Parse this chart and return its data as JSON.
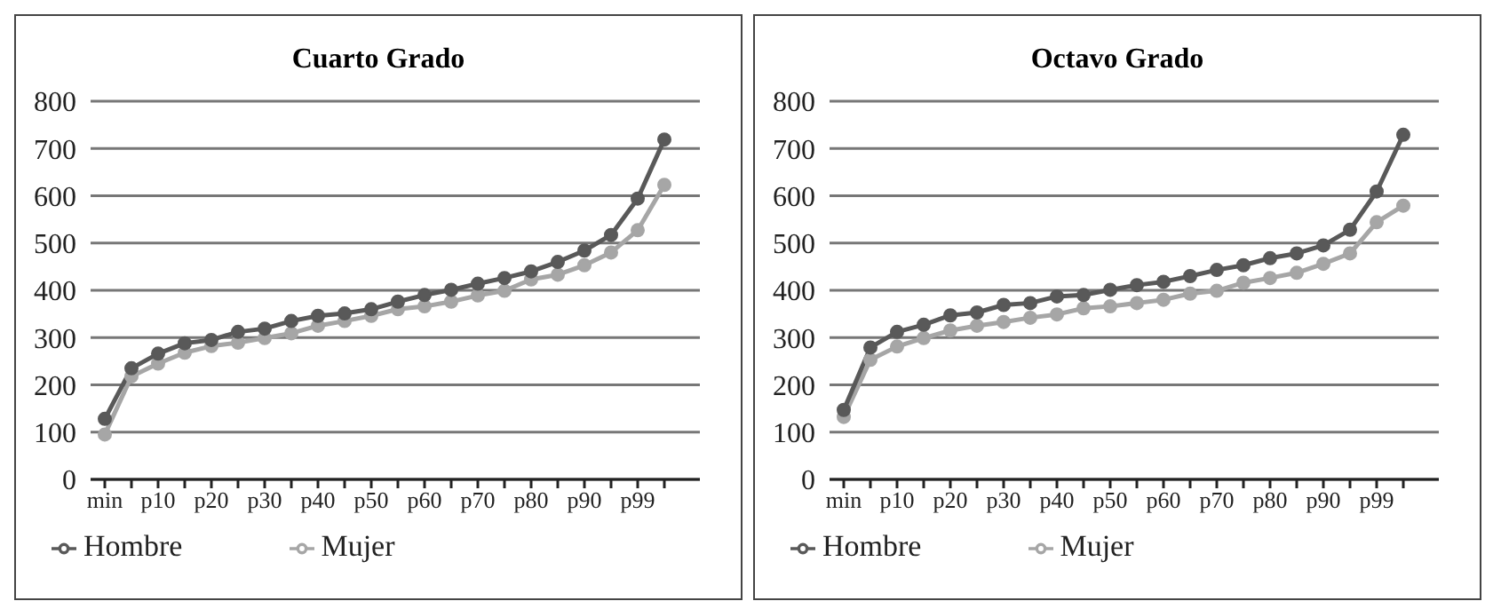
{
  "chart_data": [
    {
      "type": "line",
      "title": "Cuarto Grado",
      "categories": [
        "min",
        null,
        "p10",
        null,
        "p20",
        null,
        "p30",
        null,
        "p40",
        null,
        "p50",
        null,
        "p60",
        null,
        "p70",
        null,
        "p80",
        null,
        "p90",
        null,
        "p99",
        null
      ],
      "series": [
        {
          "name": "Mujer",
          "color": "#a6a6a6",
          "values": [
            95,
            218,
            245,
            268,
            282,
            289,
            299,
            309,
            325,
            335,
            346,
            360,
            366,
            376,
            389,
            399,
            423,
            433,
            453,
            480,
            527,
            623
          ]
        },
        {
          "name": "Hombre",
          "color": "#595959",
          "values": [
            128,
            235,
            266,
            288,
            295,
            312,
            319,
            335,
            346,
            351,
            360,
            376,
            390,
            401,
            414,
            426,
            440,
            460,
            484,
            517,
            594,
            719
          ]
        }
      ],
      "ylim": [
        0,
        800
      ],
      "yticks": [
        0,
        100,
        200,
        300,
        400,
        500,
        600,
        700,
        800
      ],
      "grid": "y",
      "legend": "bottom",
      "marker": "circle",
      "line_style": "solid"
    },
    {
      "type": "line",
      "title": "Octavo Grado",
      "categories": [
        "min",
        null,
        "p10",
        null,
        "p20",
        null,
        "p30",
        null,
        "p40",
        null,
        "p50",
        null,
        "p60",
        null,
        "p70",
        null,
        "p80",
        null,
        "p90",
        null,
        "p99",
        null
      ],
      "series": [
        {
          "name": "Mujer",
          "color": "#a6a6a6",
          "values": [
            132,
            253,
            281,
            299,
            315,
            325,
            333,
            342,
            349,
            362,
            366,
            373,
            380,
            393,
            399,
            416,
            426,
            437,
            456,
            478,
            544,
            579
          ]
        },
        {
          "name": "Hombre",
          "color": "#595959",
          "values": [
            147,
            279,
            312,
            327,
            347,
            353,
            369,
            373,
            387,
            390,
            401,
            411,
            418,
            430,
            443,
            453,
            468,
            478,
            495,
            528,
            609,
            729
          ]
        }
      ],
      "ylim": [
        0,
        800
      ],
      "yticks": [
        0,
        100,
        200,
        300,
        400,
        500,
        600,
        700,
        800
      ],
      "grid": "y",
      "legend": "bottom",
      "marker": "circle",
      "line_style": "solid"
    }
  ]
}
